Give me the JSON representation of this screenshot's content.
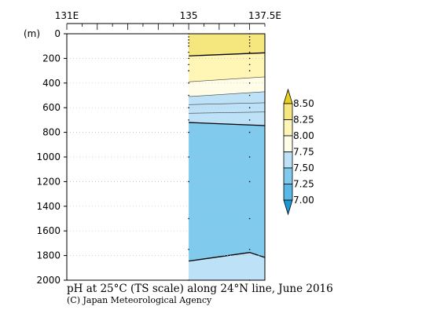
{
  "chart_data": {
    "type": "heatmap",
    "title": "pH at 25°C (TS scale) along 24°N line, June 2016",
    "credit": "(C) Japan Meteorological Agency",
    "y_unit_label": "(m)",
    "x_tick_labels": [
      {
        "lon": 131,
        "label": "131E"
      },
      {
        "lon": 135,
        "label": "135"
      },
      {
        "lon": 137.5,
        "label": "137.5E"
      }
    ],
    "xlim": [
      131,
      137.5
    ],
    "ylim": [
      0,
      2000
    ],
    "y_ticks": [
      0,
      200,
      400,
      600,
      800,
      1000,
      1200,
      1400,
      1600,
      1800,
      2000
    ],
    "data_start_lon": 135,
    "station_lons": [
      135,
      137
    ],
    "station_depths": [
      0,
      25,
      50,
      75,
      100,
      150,
      200,
      250,
      300,
      400,
      500,
      600,
      700,
      800,
      1000,
      1200,
      1500,
      1750,
      2000
    ],
    "colorbar": {
      "levels": [
        7.0,
        7.25,
        7.5,
        7.75,
        8.0,
        8.25,
        8.5
      ],
      "level_labels": [
        "7.00",
        "7.25",
        "7.50",
        "7.75",
        "8.00",
        "8.25",
        "8.50"
      ],
      "bin_colors": [
        "#1e96d2",
        "#58b9e6",
        "#7fcaed",
        "#bde1f6",
        "#fffce8",
        "#fff5b5",
        "#f5e67e",
        "#e8cf1e"
      ]
    },
    "bands": [
      {
        "color": "#f5e67e",
        "top": [
          0,
          0
        ],
        "bottom": [
          180,
          155
        ]
      },
      {
        "color": "#fff5b5",
        "top": [
          180,
          155
        ],
        "bottom": [
          390,
          350
        ]
      },
      {
        "color": "#fffce8",
        "top": [
          390,
          350
        ],
        "bottom": [
          510,
          470
        ]
      },
      {
        "color": "#bde1f6",
        "top": [
          510,
          470
        ],
        "bottom": [
          720,
          745
        ]
      },
      {
        "color": "#7fcaed",
        "top": [
          720,
          745
        ],
        "bottom": [
          1845,
          1775,
          1815
        ]
      },
      {
        "color": "#bde1f6",
        "top": [
          1845,
          1775,
          1815
        ],
        "bottom": [
          2000,
          2000
        ]
      }
    ],
    "contours": [
      {
        "depths": [
          180,
          155
        ],
        "bold": true
      },
      {
        "depths": [
          390,
          350
        ],
        "bold": false
      },
      {
        "depths": [
          510,
          470
        ],
        "bold": false
      },
      {
        "depths": [
          575,
          560
        ],
        "bold": false
      },
      {
        "depths": [
          645,
          635
        ],
        "bold": false
      },
      {
        "depths": [
          720,
          745
        ],
        "bold": true
      },
      {
        "depths": [
          1845,
          1775,
          1815
        ],
        "bold": true
      }
    ],
    "contour_lons": [
      135,
      137.5
    ],
    "bottom_contour_lons": [
      135,
      137,
      137.5
    ]
  }
}
